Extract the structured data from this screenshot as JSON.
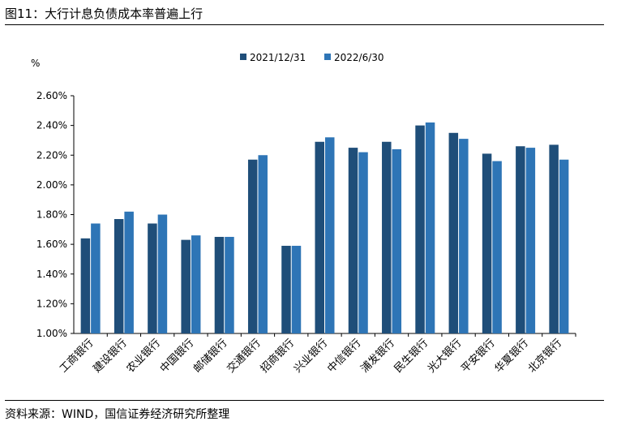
{
  "figure": {
    "title": "图11：大行计息负债成本率普遍上行",
    "source": "资料来源：WIND，国信证券经济研究所整理"
  },
  "chart_data": {
    "type": "bar",
    "title": "大行计息负债成本率普遍上行",
    "xlabel": "",
    "ylabel": "%",
    "ylim": [
      1.0,
      2.6
    ],
    "yticks": [
      1.0,
      1.2,
      1.4,
      1.6,
      1.8,
      2.0,
      2.2,
      2.4,
      2.6
    ],
    "ytick_labels": [
      "1.00%",
      "1.20%",
      "1.40%",
      "1.60%",
      "1.80%",
      "2.00%",
      "2.20%",
      "2.40%",
      "2.60%"
    ],
    "grid": false,
    "legend_position": "top-center",
    "categories": [
      "工商银行",
      "建设银行",
      "农业银行",
      "中国银行",
      "邮储银行",
      "交通银行",
      "招商银行",
      "兴业银行",
      "中信银行",
      "浦发银行",
      "民生银行",
      "光大银行",
      "平安银行",
      "华夏银行",
      "北京银行"
    ],
    "series": [
      {
        "name": "2021/12/31",
        "color": "#1f4e79",
        "values": [
          1.64,
          1.77,
          1.74,
          1.63,
          1.65,
          2.17,
          1.59,
          2.29,
          2.25,
          2.29,
          2.4,
          2.35,
          2.21,
          2.26,
          2.27
        ]
      },
      {
        "name": "2022/6/30",
        "color": "#2e75b6",
        "values": [
          1.74,
          1.82,
          1.8,
          1.66,
          1.65,
          2.2,
          1.59,
          2.32,
          2.22,
          2.24,
          2.42,
          2.31,
          2.16,
          2.25,
          2.17
        ]
      }
    ]
  }
}
